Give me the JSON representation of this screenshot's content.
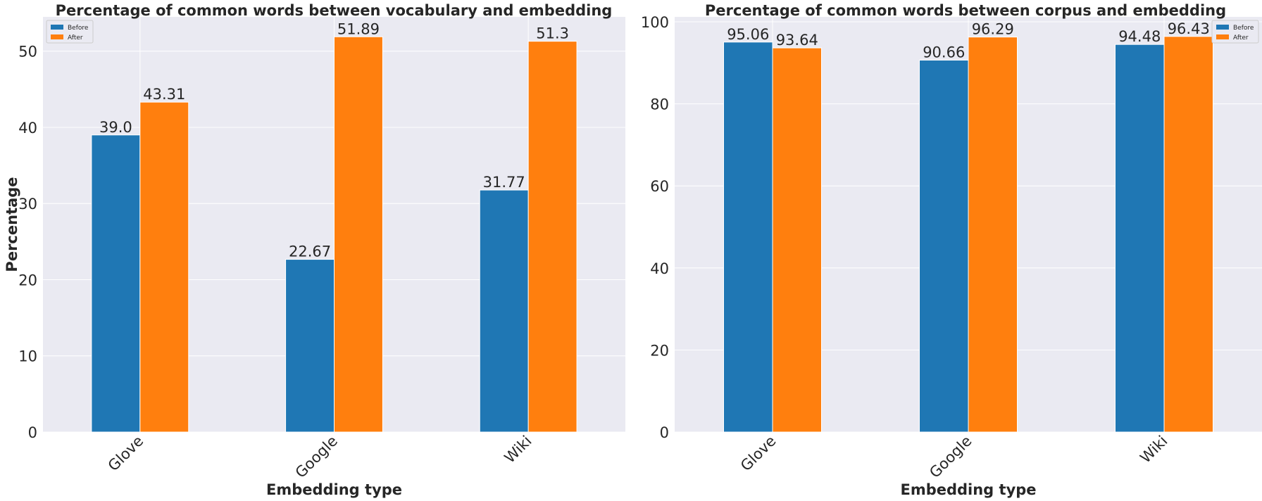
{
  "chart_data": [
    {
      "type": "bar",
      "title": "Percentage of common words between vocabulary and embedding",
      "xlabel": "Embedding type",
      "ylabel": "Percentage",
      "categories": [
        "Glove",
        "Google",
        "Wiki"
      ],
      "ylim": [
        0,
        54.5
      ],
      "yticks": [
        0,
        10,
        20,
        30,
        40,
        50
      ],
      "grid": true,
      "legend_position": "top-left",
      "series": [
        {
          "name": "Before",
          "color": "#1f77b4",
          "values": [
            39.0,
            22.67,
            31.77
          ],
          "labels": [
            "39.0",
            "22.67",
            "31.77"
          ]
        },
        {
          "name": "After",
          "color": "#ff7f0e",
          "values": [
            43.31,
            51.89,
            51.3
          ],
          "labels": [
            "43.31",
            "51.89",
            "51.3"
          ]
        }
      ]
    },
    {
      "type": "bar",
      "title": "Percentage of common words between corpus and embedding",
      "xlabel": "Embedding type",
      "ylabel": "",
      "categories": [
        "Glove",
        "Google",
        "Wiki"
      ],
      "ylim": [
        0,
        101.2
      ],
      "yticks": [
        0,
        20,
        40,
        60,
        80,
        100
      ],
      "grid": true,
      "legend_position": "top-right",
      "series": [
        {
          "name": "Before",
          "color": "#1f77b4",
          "values": [
            95.06,
            90.66,
            94.48
          ],
          "labels": [
            "95.06",
            "90.66",
            "94.48"
          ]
        },
        {
          "name": "After",
          "color": "#ff7f0e",
          "values": [
            93.64,
            96.29,
            96.43
          ],
          "labels": [
            "93.64",
            "96.29",
            "96.43"
          ]
        }
      ]
    }
  ]
}
